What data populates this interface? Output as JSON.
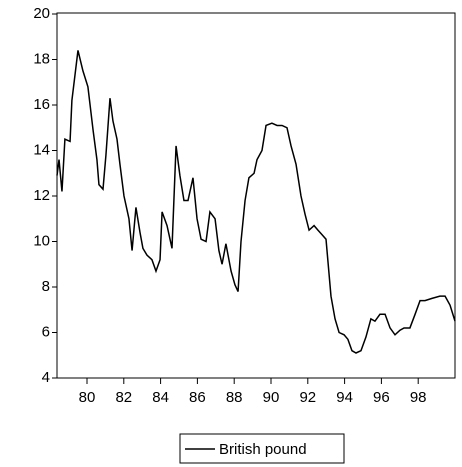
{
  "chart_data": {
    "type": "line",
    "x": [
      78.37,
      78.48,
      78.64,
      78.8,
      79.08,
      79.18,
      79.51,
      79.78,
      80.05,
      80.33,
      80.54,
      80.65,
      80.87,
      81.03,
      81.25,
      81.41,
      81.63,
      81.79,
      82.01,
      82.28,
      82.45,
      82.66,
      82.88,
      83.04,
      83.26,
      83.53,
      83.75,
      83.97,
      84.08,
      84.35,
      84.62,
      84.84,
      85.05,
      85.27,
      85.49,
      85.76,
      85.98,
      86.2,
      86.47,
      86.68,
      86.96,
      87.17,
      87.34,
      87.55,
      87.83,
      88.04,
      88.21,
      88.37,
      88.59,
      88.8,
      89.08,
      89.24,
      89.51,
      89.73,
      90.05,
      90.33,
      90.6,
      90.87,
      91.09,
      91.36,
      91.63,
      91.85,
      92.07,
      92.34,
      92.55,
      92.77,
      92.99,
      93.26,
      93.48,
      93.7,
      93.97,
      94.18,
      94.4,
      94.62,
      94.89,
      95.16,
      95.43,
      95.65,
      95.92,
      96.2,
      96.47,
      96.74,
      97.01,
      97.23,
      97.55,
      97.83,
      98.1,
      98.37,
      98.75,
      99.18,
      99.46,
      99.73,
      100.0
    ],
    "series": [
      {
        "name": "British pound",
        "color": "#000000",
        "values": [
          12.9,
          13.6,
          12.2,
          14.5,
          14.4,
          16.2,
          18.4,
          17.5,
          16.8,
          14.9,
          13.6,
          12.5,
          12.3,
          13.8,
          16.3,
          15.3,
          14.5,
          13.4,
          12.0,
          11.0,
          9.6,
          11.5,
          10.4,
          9.7,
          9.4,
          9.2,
          8.7,
          9.2,
          11.3,
          10.7,
          9.7,
          14.2,
          12.9,
          11.8,
          11.8,
          12.8,
          11.0,
          10.1,
          10.0,
          11.3,
          11.0,
          9.6,
          9.0,
          9.9,
          8.7,
          8.1,
          7.8,
          10.0,
          11.8,
          12.8,
          13.0,
          13.6,
          14.0,
          15.1,
          15.2,
          15.1,
          15.1,
          15.0,
          14.2,
          13.4,
          12.0,
          11.2,
          10.5,
          10.7,
          10.5,
          10.3,
          10.1,
          7.6,
          6.6,
          6.0,
          5.9,
          5.7,
          5.2,
          5.1,
          5.2,
          5.8,
          6.6,
          6.5,
          6.8,
          6.8,
          6.2,
          5.9,
          6.1,
          6.2,
          6.2,
          6.8,
          7.4,
          7.4,
          7.5,
          7.6,
          7.6,
          7.2,
          6.5
        ]
      }
    ],
    "xlim": [
      78.37,
      100.0
    ],
    "xticks": [
      80,
      82,
      84,
      86,
      88,
      90,
      92,
      94,
      96,
      98
    ],
    "ylim": [
      4,
      20
    ],
    "yticks": [
      4,
      6,
      8,
      10,
      12,
      14,
      16,
      18,
      20
    ],
    "grid": false
  }
}
